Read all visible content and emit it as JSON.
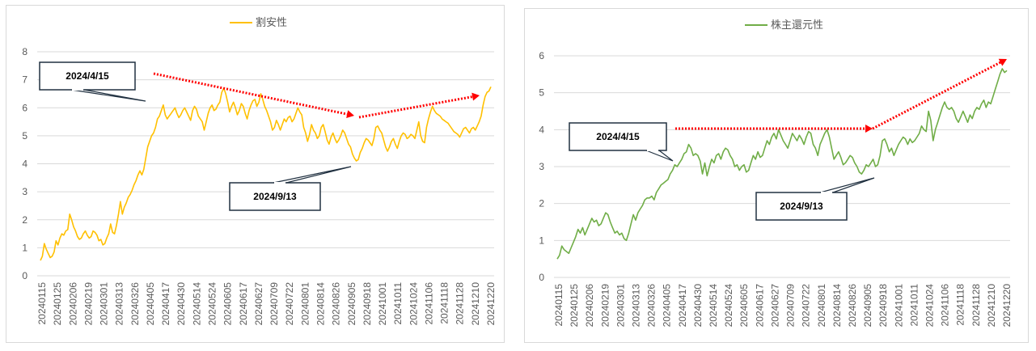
{
  "chart_data": [
    {
      "type": "line",
      "legend": "割安性",
      "legend_position": "top-center",
      "color": "#FFC000",
      "ylim": [
        0,
        8
      ],
      "yticks": [
        0,
        1,
        2,
        3,
        4,
        5,
        6,
        7,
        8
      ],
      "grid": true,
      "x_labels": [
        "20240115",
        "20240125",
        "20240206",
        "20240219",
        "20240301",
        "20240313",
        "20240326",
        "20240405",
        "20240417",
        "20240430",
        "20240514",
        "20240524",
        "20240605",
        "20240617",
        "20240627",
        "20240709",
        "20240722",
        "20240801",
        "20240814",
        "20240826",
        "20240905",
        "20240918",
        "20241001",
        "20241011",
        "20241024",
        "20241106",
        "20241118",
        "20241128",
        "20241210",
        "20241220"
      ],
      "series": [
        {
          "values": [
            0.55,
            0.7,
            1.15,
            0.95,
            0.8,
            0.65,
            0.7,
            0.85,
            1.25,
            1.1,
            1.35,
            1.5,
            1.45,
            1.6,
            1.65,
            2.2,
            2.0,
            1.75,
            1.6,
            1.4,
            1.3,
            1.35,
            1.5,
            1.6,
            1.45,
            1.35,
            1.4,
            1.6,
            1.55,
            1.45,
            1.25,
            1.3,
            1.1,
            1.15,
            1.35,
            1.5,
            1.85,
            1.55,
            1.5,
            1.8,
            2.2,
            2.65,
            2.2,
            2.45,
            2.6,
            2.8,
            2.9,
            3.05,
            3.25,
            3.4,
            3.6,
            3.75,
            3.6,
            3.8,
            4.2,
            4.6,
            4.8,
            5.0,
            5.1,
            5.3,
            5.6,
            5.7,
            5.9,
            6.1,
            5.75,
            5.6,
            5.7,
            5.8,
            5.9,
            6.0,
            5.8,
            5.65,
            5.75,
            5.9,
            6.0,
            5.85,
            5.7,
            5.55,
            5.9,
            6.05,
            5.95,
            5.7,
            5.6,
            5.5,
            5.2,
            5.5,
            5.8,
            6.0,
            6.1,
            5.9,
            5.95,
            6.1,
            6.2,
            6.55,
            6.7,
            6.5,
            6.2,
            5.85,
            6.05,
            6.2,
            6.0,
            5.75,
            5.9,
            6.15,
            6.05,
            5.8,
            5.6,
            5.9,
            6.1,
            6.25,
            6.3,
            6.05,
            6.2,
            6.5,
            6.3,
            6.05,
            5.9,
            5.7,
            5.5,
            5.2,
            5.3,
            5.55,
            5.4,
            5.2,
            5.4,
            5.6,
            5.5,
            5.65,
            5.7,
            5.5,
            5.6,
            5.8,
            6.0,
            5.85,
            5.75,
            5.3,
            5.1,
            4.8,
            5.05,
            5.4,
            5.2,
            5.1,
            4.9,
            5.0,
            5.3,
            5.4,
            5.15,
            4.85,
            4.7,
            4.95,
            5.1,
            4.9,
            4.75,
            4.85,
            5.0,
            5.2,
            5.1,
            4.9,
            4.7,
            4.6,
            4.35,
            4.2,
            4.1,
            4.15,
            4.4,
            4.55,
            4.75,
            4.9,
            4.85,
            4.75,
            4.65,
            4.9,
            5.3,
            5.35,
            5.2,
            5.1,
            4.85,
            4.6,
            4.45,
            4.6,
            4.8,
            4.9,
            4.7,
            4.55,
            4.8,
            5.0,
            5.1,
            5.05,
            4.9,
            4.95,
            5.05,
            5.0,
            4.9,
            5.2,
            5.5,
            5.0,
            4.8,
            4.75,
            5.3,
            5.6,
            5.85,
            6.05,
            5.9,
            5.8,
            5.75,
            5.7,
            5.6,
            5.55,
            5.5,
            5.45,
            5.35,
            5.25,
            5.15,
            5.1,
            5.05,
            4.95,
            5.1,
            5.25,
            5.3,
            5.2,
            5.1,
            5.25,
            5.3,
            5.2,
            5.35,
            5.5,
            5.7,
            6.1,
            6.4,
            6.55,
            6.6,
            6.75
          ]
        }
      ],
      "annotations": [
        {
          "text": "2024/4/15"
        },
        {
          "text": "2024/9/13"
        }
      ]
    },
    {
      "type": "line",
      "legend": "株主還元性",
      "legend_position": "top-center",
      "color": "#70AD47",
      "ylim": [
        0,
        6
      ],
      "yticks": [
        0,
        1,
        2,
        3,
        4,
        5,
        6
      ],
      "grid": true,
      "x_labels": [
        "20240115",
        "20240125",
        "20240206",
        "20240219",
        "20240301",
        "20240313",
        "20240326",
        "20240405",
        "20240417",
        "20240430",
        "20240514",
        "20240524",
        "20240605",
        "20240617",
        "20240627",
        "20240709",
        "20240722",
        "20240801",
        "20240814",
        "20240826",
        "20240905",
        "20240918",
        "20241001",
        "20241011",
        "20241024",
        "20241106",
        "20241118",
        "20241128",
        "20241210",
        "20241220"
      ],
      "series": [
        {
          "values": [
            0.5,
            0.6,
            0.85,
            0.75,
            0.7,
            0.65,
            0.8,
            0.95,
            1.1,
            1.3,
            1.2,
            1.35,
            1.15,
            1.3,
            1.45,
            1.6,
            1.5,
            1.55,
            1.4,
            1.45,
            1.6,
            1.75,
            1.7,
            1.5,
            1.35,
            1.2,
            1.25,
            1.15,
            1.2,
            1.05,
            1.0,
            1.2,
            1.45,
            1.7,
            1.55,
            1.75,
            1.85,
            1.95,
            2.1,
            2.15,
            2.15,
            2.2,
            2.1,
            2.3,
            2.4,
            2.5,
            2.55,
            2.6,
            2.65,
            2.8,
            2.9,
            3.05,
            3.0,
            3.1,
            3.2,
            3.35,
            3.4,
            3.6,
            3.5,
            3.3,
            3.35,
            3.3,
            3.15,
            2.8,
            3.1,
            2.75,
            3.0,
            3.2,
            3.1,
            3.3,
            3.35,
            3.2,
            3.4,
            3.5,
            3.45,
            3.3,
            3.2,
            3.0,
            3.05,
            2.9,
            3.0,
            3.05,
            2.85,
            2.9,
            3.1,
            3.3,
            3.2,
            3.4,
            3.25,
            3.3,
            3.5,
            3.7,
            3.6,
            3.8,
            3.9,
            3.75,
            4.0,
            3.85,
            3.7,
            3.6,
            3.5,
            3.7,
            3.9,
            3.8,
            3.7,
            3.85,
            3.75,
            3.6,
            3.8,
            3.95,
            3.9,
            3.6,
            3.5,
            3.3,
            3.6,
            3.75,
            3.9,
            4.0,
            3.8,
            3.5,
            3.2,
            3.3,
            3.4,
            3.25,
            3.05,
            3.1,
            3.2,
            3.3,
            3.25,
            3.1,
            3.0,
            2.85,
            2.8,
            2.9,
            3.05,
            3.0,
            3.1,
            3.2,
            3.0,
            3.05,
            3.3,
            3.7,
            3.75,
            3.6,
            3.4,
            3.5,
            3.3,
            3.45,
            3.6,
            3.7,
            3.8,
            3.75,
            3.6,
            3.75,
            3.65,
            3.7,
            3.8,
            3.9,
            4.1,
            4.0,
            3.95,
            4.5,
            4.25,
            3.7,
            4.0,
            4.2,
            4.4,
            4.6,
            4.75,
            4.6,
            4.55,
            4.6,
            4.5,
            4.3,
            4.2,
            4.35,
            4.5,
            4.35,
            4.2,
            4.4,
            4.3,
            4.5,
            4.6,
            4.55,
            4.7,
            4.8,
            4.6,
            4.75,
            4.7,
            4.9,
            5.1,
            5.3,
            5.5,
            5.65,
            5.55,
            5.6
          ]
        }
      ],
      "annotations": [
        {
          "text": "2024/4/15"
        },
        {
          "text": "2024/9/13"
        }
      ]
    }
  ]
}
